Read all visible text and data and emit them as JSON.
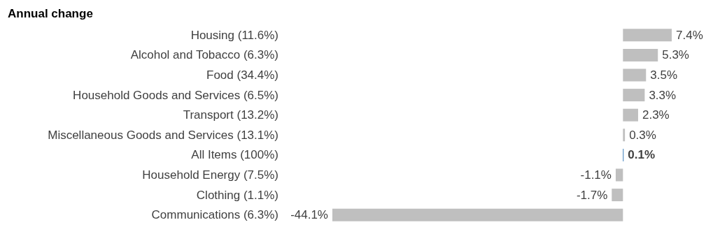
{
  "chart_data": {
    "type": "bar",
    "orientation": "horizontal",
    "title": "Annual change",
    "categories": [
      "Housing (11.6%)",
      "Alcohol and Tobacco (6.3%)",
      "Food (34.4%)",
      "Household Goods and Services (6.5%)",
      "Transport (13.2%)",
      "Miscellaneous Goods and Services (13.1%)",
      "All Items (100%)",
      "Household Energy (7.5%)",
      "Clothing (1.1%)",
      "Communications (6.3%)"
    ],
    "values": [
      7.4,
      5.3,
      3.5,
      3.3,
      2.3,
      0.3,
      0.1,
      -1.1,
      -1.7,
      -44.1
    ],
    "value_labels": [
      "7.4%",
      "5.3%",
      "3.5%",
      "3.3%",
      "2.3%",
      "0.3%",
      "0.1%",
      "-1.1%",
      "-1.7%",
      "-44.1%"
    ],
    "colors": [
      "#bfbfbf",
      "#bfbfbf",
      "#bfbfbf",
      "#bfbfbf",
      "#bfbfbf",
      "#bfbfbf",
      "#2e75b6",
      "#bfbfbf",
      "#bfbfbf",
      "#bfbfbf"
    ]
  }
}
